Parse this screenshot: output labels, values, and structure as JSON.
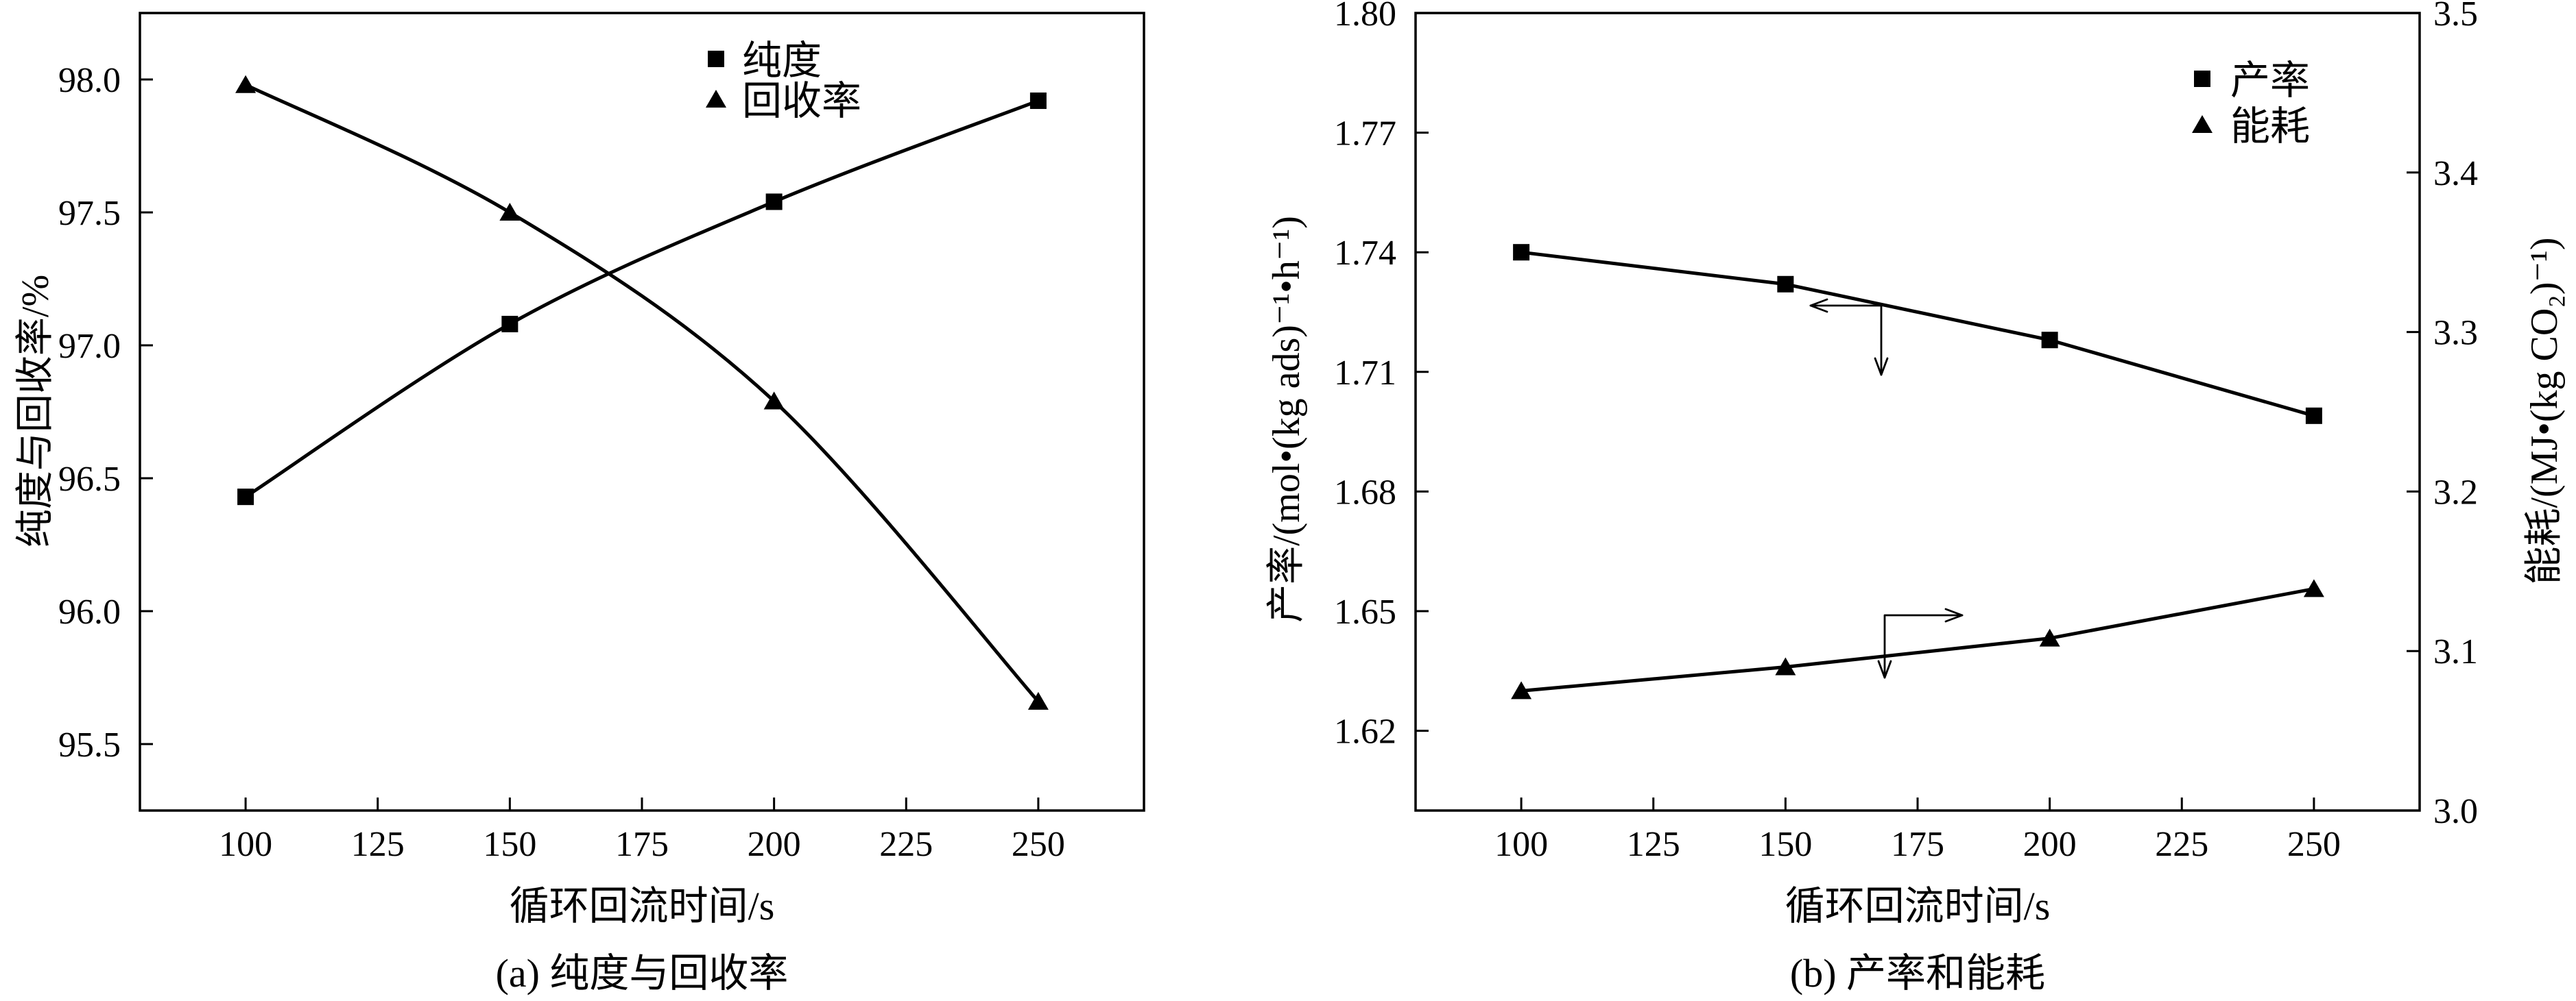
{
  "chart_data": [
    {
      "type": "line",
      "caption": "(a) 纯度与回收率",
      "xlabel": "循环回流时间/s",
      "ylabel": "纯度与回收率/%",
      "x": [
        100,
        150,
        200,
        250
      ],
      "xlim": [
        80,
        270
      ],
      "xticks": [
        "100",
        "125",
        "150",
        "175",
        "200",
        "225",
        "250"
      ],
      "ylim": [
        95.25,
        98.25
      ],
      "yticks": [
        "95.5",
        "96.0",
        "96.5",
        "97.0",
        "97.5",
        "98.0"
      ],
      "smooth": true,
      "grid": false,
      "legend": "top-right",
      "series": [
        {
          "name": "纯度",
          "marker": "square",
          "axis": "left",
          "values": [
            96.43,
            97.08,
            97.54,
            97.92
          ]
        },
        {
          "name": "回收率",
          "marker": "triangle",
          "axis": "left",
          "values": [
            97.98,
            97.5,
            96.79,
            95.66
          ]
        }
      ]
    },
    {
      "type": "line",
      "caption": "(b) 产率和能耗",
      "xlabel": "循环回流时间/s",
      "ylabel": "产率/(mol•(kg ads)⁻¹•h⁻¹)",
      "y2label": "能耗/(MJ•(kg CO₂)⁻¹)",
      "x": [
        100,
        150,
        200,
        250
      ],
      "xlim": [
        80,
        270
      ],
      "xticks": [
        "100",
        "125",
        "150",
        "175",
        "200",
        "225",
        "250"
      ],
      "ylim": [
        1.6,
        1.8
      ],
      "yticks": [
        "1.62",
        "1.65",
        "1.68",
        "1.71",
        "1.74",
        "1.77",
        "1.80"
      ],
      "y2lim": [
        3.0,
        3.5
      ],
      "y2ticks": [
        "3.0",
        "3.1",
        "3.2",
        "3.3",
        "3.4",
        "3.5"
      ],
      "smooth": false,
      "grid": false,
      "legend": "top-right",
      "series": [
        {
          "name": "产率",
          "marker": "square",
          "axis": "left",
          "values": [
            1.74,
            1.732,
            1.718,
            1.699
          ]
        },
        {
          "name": "能耗",
          "marker": "triangle",
          "axis": "right",
          "values": [
            3.075,
            3.09,
            3.108,
            3.139
          ]
        }
      ]
    }
  ]
}
